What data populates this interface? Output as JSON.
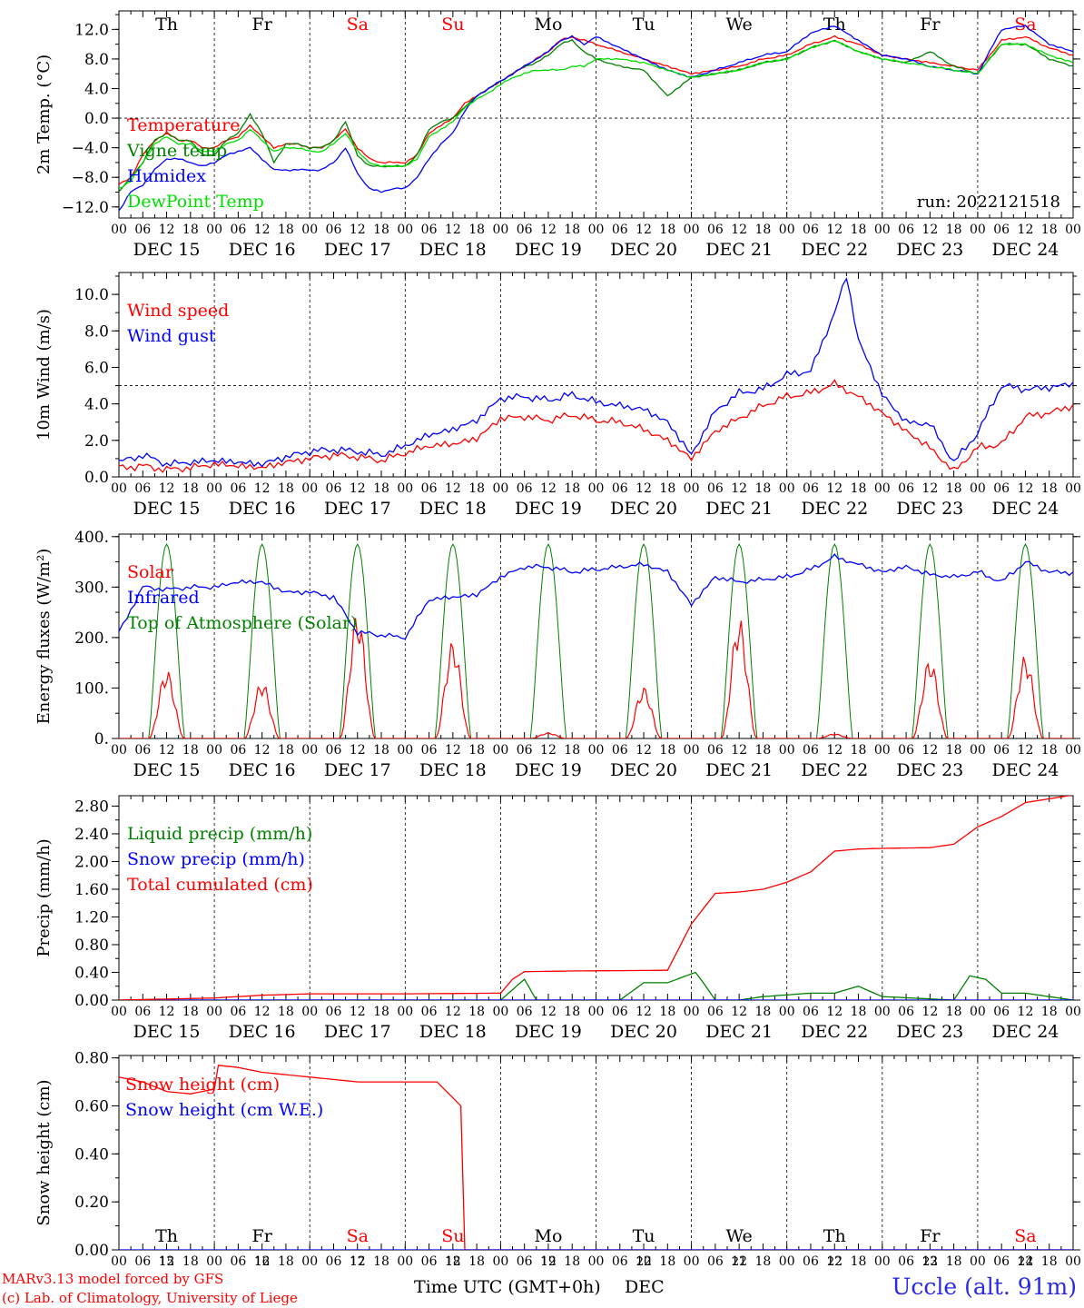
{
  "days": {
    "weekday": [
      "Th",
      "Fr",
      "Sa",
      "Su",
      "Mo",
      "Tu",
      "We",
      "Th",
      "Fr",
      "Sa"
    ],
    "weekend": [
      false,
      false,
      true,
      true,
      false,
      false,
      false,
      false,
      false,
      true
    ],
    "date_labels": [
      "DEC 15",
      "DEC 16",
      "DEC 17",
      "DEC 18",
      "DEC 19",
      "DEC 20",
      "DEC 21",
      "DEC 22",
      "DEC 23",
      "DEC 24"
    ],
    "day_numbers": [
      "15",
      "16",
      "17",
      "18",
      "19",
      "20",
      "21",
      "22",
      "23",
      "24"
    ],
    "hour_ticks": [
      "00",
      "06",
      "12",
      "18"
    ],
    "final_hour": "00"
  },
  "colors": {
    "red": "#ff0000",
    "blue": "#0000ff",
    "green": "#008000",
    "lightgreen": "#00dd00"
  },
  "footer": {
    "credit_line1": "MARv3.13 model forced by GFS",
    "credit_line2": "(c) Lab. of Climatology, University of Liege",
    "xaxis_title": "Time UTC (GMT+0h)",
    "month": "DEC",
    "station": "Uccle (alt. 91m)"
  },
  "chart_data": [
    {
      "type": "line",
      "ylabel": "2m Temp. (°C)",
      "ylim": [
        -13.5,
        14.5
      ],
      "yticks": [
        "12.0",
        "8.0",
        "4.0",
        "0.0",
        "−4.0",
        "−8.0",
        "−12.0"
      ],
      "ytick_values": [
        12,
        8,
        4,
        0,
        -4,
        -8,
        -12
      ],
      "reference_line": 0,
      "annotation": "run: 2022121518",
      "x_unit": "hours since DEC 15 00 UTC",
      "series": [
        {
          "name": "Temperature",
          "color": "red",
          "x": [
            0,
            3,
            6,
            9,
            12,
            15,
            18,
            21,
            24,
            27,
            30,
            33,
            36,
            39,
            42,
            45,
            48,
            51,
            54,
            57,
            60,
            63,
            66,
            69,
            72,
            75,
            78,
            81,
            84,
            87,
            90,
            93,
            96,
            99,
            102,
            105,
            108,
            111,
            114,
            117,
            120,
            126,
            132,
            138,
            144,
            150,
            156,
            162,
            168,
            174,
            180,
            186,
            192,
            198,
            204,
            210,
            216,
            222,
            228,
            234,
            240
          ],
          "y": [
            -9,
            -8,
            -5,
            -3,
            -2,
            -3,
            -3,
            -4,
            -4,
            -3,
            -2.5,
            -1,
            -2.5,
            -4,
            -3.5,
            -3.5,
            -4,
            -4,
            -3,
            -1.5,
            -4,
            -5.5,
            -6,
            -6,
            -6,
            -5,
            -2,
            -1,
            0,
            2,
            3,
            4,
            5,
            6,
            7,
            8,
            9,
            10.5,
            11,
            10.5,
            10,
            9,
            8,
            7,
            6,
            6.5,
            7,
            8,
            8.5,
            10,
            11,
            10,
            8.5,
            8,
            7.5,
            7,
            6.5,
            10.5,
            11,
            9.5,
            8.5
          ]
        },
        {
          "name": "Vigne temp",
          "color": "green",
          "x": [
            0,
            3,
            6,
            9,
            12,
            15,
            18,
            21,
            24,
            27,
            30,
            33,
            36,
            39,
            42,
            45,
            48,
            51,
            54,
            57,
            60,
            63,
            66,
            69,
            72,
            75,
            78,
            81,
            84,
            87,
            90,
            93,
            96,
            99,
            102,
            105,
            108,
            111,
            114,
            117,
            120,
            126,
            132,
            138,
            144,
            150,
            156,
            162,
            168,
            174,
            180,
            186,
            192,
            198,
            204,
            210,
            216,
            222,
            228,
            234,
            240
          ],
          "y": [
            -10,
            -8,
            -6,
            -3,
            -2,
            -3,
            -3,
            -5,
            -5,
            -3,
            -2,
            0.5,
            -2,
            -6,
            -3.5,
            -3.5,
            -4,
            -4,
            -3,
            -0.5,
            -5,
            -6.5,
            -6.5,
            -6.5,
            -6.5,
            -5,
            -1.5,
            -0.5,
            0,
            1.5,
            3,
            4,
            5,
            6,
            7,
            7.5,
            8.5,
            10,
            10.5,
            9,
            8,
            7,
            6.5,
            3,
            5.5,
            6,
            6.5,
            7.5,
            8,
            9.5,
            10.5,
            9,
            8,
            7.5,
            9,
            7,
            6,
            10,
            10,
            8,
            7
          ]
        },
        {
          "name": "Humidex",
          "color": "blue",
          "x": [
            0,
            3,
            6,
            9,
            12,
            15,
            18,
            21,
            24,
            27,
            30,
            33,
            36,
            39,
            42,
            45,
            48,
            51,
            54,
            57,
            60,
            63,
            66,
            69,
            72,
            75,
            78,
            81,
            84,
            87,
            90,
            93,
            96,
            99,
            102,
            105,
            108,
            111,
            114,
            117,
            120,
            126,
            132,
            138,
            144,
            150,
            156,
            162,
            168,
            174,
            180,
            186,
            192,
            198,
            204,
            210,
            216,
            222,
            228,
            234,
            240
          ],
          "y": [
            -12.5,
            -10,
            -9,
            -7,
            -5.5,
            -5.5,
            -6,
            -6.5,
            -6,
            -5,
            -4.5,
            -4,
            -5.5,
            -7,
            -7,
            -7,
            -7,
            -7,
            -6,
            -4,
            -7.5,
            -9.5,
            -10,
            -9.5,
            -9.5,
            -8,
            -5.5,
            -3.5,
            -2,
            1,
            3,
            4,
            5,
            6,
            7,
            8,
            9,
            10.5,
            11,
            10,
            11,
            9.5,
            8,
            6.5,
            5.5,
            6.5,
            7.5,
            8.5,
            9,
            11.5,
            12.5,
            10.5,
            8.5,
            8,
            7,
            6.5,
            6,
            12,
            12.5,
            10,
            9
          ]
        },
        {
          "name": "DewPoint Temp",
          "color": "lightgreen",
          "x": [
            0,
            3,
            6,
            9,
            12,
            15,
            18,
            21,
            24,
            27,
            30,
            33,
            36,
            39,
            42,
            45,
            48,
            51,
            54,
            57,
            60,
            63,
            66,
            69,
            72,
            75,
            78,
            81,
            84,
            87,
            90,
            93,
            96,
            99,
            102,
            105,
            108,
            111,
            114,
            117,
            120,
            126,
            132,
            138,
            144,
            150,
            156,
            162,
            168,
            174,
            180,
            186,
            192,
            198,
            204,
            210,
            216,
            222,
            228,
            234,
            240
          ],
          "y": [
            -9.5,
            -8.5,
            -6,
            -3.5,
            -2.5,
            -3.5,
            -3.5,
            -4.5,
            -4.5,
            -3.5,
            -3,
            -1.5,
            -3,
            -4.5,
            -4,
            -4,
            -4.5,
            -4.5,
            -3.5,
            -2,
            -4.5,
            -6,
            -6.5,
            -6.5,
            -6.5,
            -5.5,
            -2.5,
            -1.5,
            -0.5,
            1.5,
            2.5,
            3.5,
            4.5,
            5.5,
            6,
            6.5,
            6.5,
            6.5,
            7,
            7,
            8,
            8,
            7.5,
            6.5,
            5.5,
            6,
            6.5,
            7.5,
            8,
            9.5,
            10.5,
            9,
            8,
            7.5,
            7,
            6.5,
            6,
            10,
            10,
            8.5,
            7.5
          ]
        }
      ]
    },
    {
      "type": "line",
      "ylabel": "10m Wind (m/s)",
      "ylim": [
        0,
        11.2
      ],
      "yticks": [
        "10.0",
        "8.0",
        "6.0",
        "4.0",
        "2.0",
        "0.0"
      ],
      "ytick_values": [
        10,
        8,
        6,
        4,
        2,
        0
      ],
      "reference_line": 5,
      "x_unit": "hours since DEC 15 00 UTC",
      "series": [
        {
          "name": "Wind speed",
          "color": "red",
          "x": [
            0,
            6,
            12,
            18,
            24,
            30,
            36,
            42,
            48,
            54,
            60,
            66,
            72,
            78,
            84,
            90,
            96,
            102,
            108,
            114,
            120,
            126,
            132,
            138,
            144,
            150,
            156,
            162,
            168,
            174,
            180,
            186,
            192,
            198,
            204,
            210,
            216,
            222,
            228,
            234,
            240
          ],
          "y": [
            0.5,
            0.6,
            0.4,
            0.5,
            0.7,
            0.6,
            0.5,
            0.8,
            1.0,
            1.2,
            1.1,
            0.9,
            1.3,
            1.7,
            1.8,
            2.1,
            3.2,
            3.3,
            3.1,
            3.4,
            3.1,
            3.0,
            2.6,
            2.0,
            1.0,
            2.5,
            3.2,
            3.9,
            4.4,
            4.6,
            5.1,
            4.4,
            3.5,
            2.5,
            1.6,
            0.3,
            1.6,
            1.8,
            3.3,
            3.5,
            3.9
          ]
        },
        {
          "name": "Wind gust",
          "color": "blue",
          "x": [
            0,
            6,
            12,
            18,
            24,
            30,
            36,
            42,
            48,
            54,
            60,
            66,
            72,
            78,
            84,
            90,
            96,
            102,
            108,
            114,
            120,
            126,
            132,
            138,
            144,
            150,
            156,
            162,
            168,
            174,
            180,
            183,
            186,
            190,
            192,
            198,
            204,
            210,
            216,
            222,
            228,
            234,
            240
          ],
          "y": [
            0.8,
            1.2,
            0.7,
            0.8,
            0.9,
            0.8,
            0.7,
            1.1,
            1.4,
            1.5,
            1.4,
            1.2,
            1.7,
            2.3,
            2.6,
            3.1,
            4.3,
            4.4,
            4.2,
            4.5,
            4.1,
            3.9,
            3.7,
            3.0,
            1.2,
            3.6,
            4.6,
            4.8,
            5.6,
            5.8,
            9.0,
            11.0,
            7.5,
            5.5,
            4.5,
            3.0,
            2.9,
            0.8,
            2.4,
            5.0,
            4.8,
            4.9,
            5.1
          ]
        }
      ]
    },
    {
      "type": "line",
      "ylabel": "Energy fluxes (W/m²)",
      "ylim": [
        0,
        405
      ],
      "yticks": [
        "400.",
        "300.",
        "200.",
        "100.",
        "0."
      ],
      "ytick_values": [
        400,
        300,
        200,
        100,
        0
      ],
      "x_unit": "hours since DEC 15 00 UTC",
      "daylight_hours": [
        7.5,
        16.5
      ],
      "toa_peak": 385,
      "solar_peaks": [
        120,
        100,
        220,
        170,
        10,
        90,
        210,
        8,
        140,
        145
      ],
      "series": [
        {
          "name": "Solar",
          "color": "red"
        },
        {
          "name": "Infrared",
          "color": "blue",
          "x": [
            0,
            6,
            12,
            18,
            24,
            30,
            36,
            42,
            48,
            54,
            60,
            66,
            72,
            78,
            84,
            90,
            96,
            102,
            108,
            114,
            120,
            126,
            132,
            138,
            144,
            150,
            156,
            162,
            168,
            174,
            180,
            186,
            192,
            198,
            204,
            210,
            216,
            222,
            228,
            234,
            240
          ],
          "y": [
            210,
            300,
            295,
            300,
            300,
            310,
            310,
            290,
            290,
            280,
            210,
            205,
            200,
            275,
            280,
            285,
            320,
            340,
            340,
            330,
            335,
            340,
            345,
            330,
            265,
            320,
            310,
            315,
            320,
            335,
            360,
            345,
            330,
            340,
            325,
            320,
            330,
            310,
            350,
            330,
            328
          ]
        },
        {
          "name": "Top of Atmosphere (Solar)",
          "color": "green"
        }
      ]
    },
    {
      "type": "line",
      "ylabel": "Precip (mm/h)",
      "ylim": [
        0,
        2.95
      ],
      "yticks": [
        "2.80",
        "2.40",
        "2.00",
        "1.60",
        "1.20",
        "0.80",
        "0.40",
        "0.00"
      ],
      "ytick_values": [
        2.8,
        2.4,
        2.0,
        1.6,
        1.2,
        0.8,
        0.4,
        0
      ],
      "x_unit": "hours since DEC 15 00 UTC",
      "series": [
        {
          "name": "Liquid precip (mm/h)",
          "color": "green",
          "x": [
            0,
            96,
            99,
            102,
            105,
            114,
            126,
            132,
            138,
            145,
            147,
            150,
            156,
            162,
            174,
            180,
            186,
            192,
            210,
            214,
            218,
            222,
            228,
            234,
            240
          ],
          "y": [
            0,
            0,
            0.15,
            0.3,
            0,
            0,
            0,
            0.25,
            0.25,
            0.4,
            0.25,
            0,
            0,
            0.05,
            0.1,
            0.1,
            0.2,
            0.05,
            0,
            0.35,
            0.3,
            0.1,
            0.1,
            0.05,
            0
          ]
        },
        {
          "name": "Snow precip (mm/h)",
          "color": "blue",
          "x": [
            0,
            240
          ],
          "y": [
            0,
            0
          ]
        },
        {
          "name": "Total cumulated (cm)",
          "color": "red",
          "x": [
            0,
            24,
            36,
            48,
            72,
            96,
            99,
            102,
            114,
            138,
            144,
            150,
            156,
            162,
            168,
            174,
            180,
            186,
            192,
            204,
            210,
            216,
            222,
            228,
            240
          ],
          "y": [
            0,
            0.03,
            0.07,
            0.09,
            0.09,
            0.1,
            0.3,
            0.41,
            0.42,
            0.43,
            1.1,
            1.54,
            1.56,
            1.6,
            1.7,
            1.85,
            2.15,
            2.18,
            2.19,
            2.2,
            2.25,
            2.5,
            2.65,
            2.85,
            2.96
          ]
        }
      ]
    },
    {
      "type": "line",
      "ylabel": "Snow height (cm)",
      "ylim": [
        0,
        0.81
      ],
      "yticks": [
        "0.80",
        "0.60",
        "0.40",
        "0.20",
        "0.00"
      ],
      "ytick_values": [
        0.8,
        0.6,
        0.4,
        0.2,
        0
      ],
      "x_unit": "hours since DEC 15 00 UTC",
      "series": [
        {
          "name": "Snow height (cm)",
          "color": "red",
          "x": [
            0,
            6,
            12,
            18,
            24,
            24.5,
            30,
            36,
            48,
            60,
            72,
            80,
            86,
            87,
            88,
            240
          ],
          "y": [
            0.72,
            0.7,
            0.66,
            0.65,
            0.67,
            0.77,
            0.76,
            0.74,
            0.72,
            0.7,
            0.7,
            0.7,
            0.6,
            0.0,
            0.0,
            0.0
          ]
        },
        {
          "name": "Snow height (cm W.E.)",
          "color": "blue",
          "x": [
            0,
            240
          ],
          "y": [
            0,
            0
          ]
        }
      ]
    }
  ]
}
